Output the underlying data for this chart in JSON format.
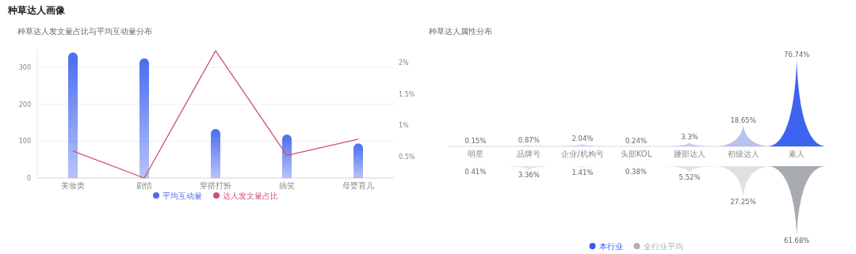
{
  "chart_data": [
    {
      "type": "bar",
      "title": "种草达人画像",
      "subtitle": "种草达人发文量占比与平均互动量分布",
      "categories": [
        "美妆类",
        "剧情",
        "穿搭打扮",
        "搞笑",
        "母婴育儿"
      ],
      "series": [
        {
          "name": "平均互动量",
          "type": "bar",
          "color": "#4a6cf0",
          "values": [
            340,
            324,
            133,
            118,
            94
          ]
        },
        {
          "name": "达人发文量占比",
          "type": "line",
          "axis": "y2",
          "color": "#d0506a",
          "values": [
            0.59,
            0.16,
            2.19,
            0.52,
            0.78
          ]
        }
      ],
      "ylim": [
        0,
        350
      ],
      "yticks": [
        0,
        100,
        200,
        300
      ],
      "y2lim": [
        0.16,
        2.22
      ],
      "y2ticks": [
        {
          "value": 0.5,
          "label": "0.5%"
        },
        {
          "value": 1,
          "label": "1%"
        },
        {
          "value": 1.5,
          "label": "1.5%"
        },
        {
          "value": 2,
          "label": "2%"
        }
      ],
      "grid": "y",
      "legend": "bottom"
    },
    {
      "type": "other",
      "title": "种草达人属性分布",
      "categories": [
        "明星",
        "品牌号",
        "企业/机构号",
        "头部KOL",
        "腰部达人",
        "初级达人",
        "素人"
      ],
      "series": [
        {
          "name": "本行业",
          "color": "#3d5af1",
          "colors": [
            "#d0d5f3",
            "#d0d5f3",
            "#ccd2f3",
            "#d0d5f3",
            "#c4cbf2",
            "#b8c1f1",
            "#3d63f0"
          ],
          "values": [
            0.15,
            0.87,
            2.04,
            0.24,
            3.3,
            18.65,
            76.74
          ],
          "value_labels": [
            "0.15%",
            "0.87%",
            "2.04%",
            "0.24%",
            "3.3%",
            "18.65%",
            "76.74%"
          ]
        },
        {
          "name": "全行业平均",
          "color": "#b0b2b5",
          "colors": [
            "#eeeeee",
            "#e6e6e6",
            "#eeeeee",
            "#eeeeee",
            "#e4e4e4",
            "#e0e0e0",
            "#a8abb0"
          ],
          "values": [
            0.41,
            3.36,
            1.41,
            0.38,
            5.52,
            27.25,
            61.68
          ],
          "value_labels": [
            "0.41%",
            "3.36%",
            "1.41%",
            "0.38%",
            "5.52%",
            "27.25%",
            "61.68%"
          ]
        }
      ],
      "legend": "bottom"
    }
  ]
}
